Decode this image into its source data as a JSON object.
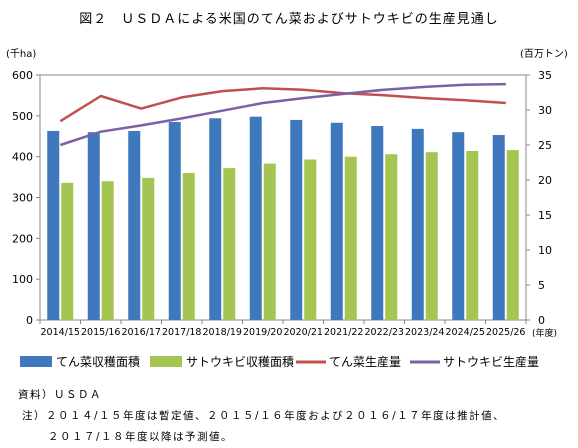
{
  "figure": {
    "title": "図２　ＵＳＤＡによる米国のてん菜およびサトウキビの生産見通し"
  },
  "notes": {
    "source": "資料）ＵＳＤＡ",
    "note1": "注）２０１４/１５年度は暫定値、２０１５/１６年度および２０１６/１７年度は推計値、",
    "note2": "２０１７/１８年度以降は予測値。"
  },
  "chart_data": {
    "type": "bar",
    "categories": [
      "2014/15",
      "2015/16",
      "2016/17",
      "2017/18",
      "2018/19",
      "2019/20",
      "2020/21",
      "2021/22",
      "2022/23",
      "2023/24",
      "2024/25",
      "2025/26"
    ],
    "x_unit": "(年度)",
    "left_axis": {
      "label": "(千ha)",
      "min": 0,
      "max": 600,
      "ticks": [
        0,
        100,
        200,
        300,
        400,
        500,
        600
      ]
    },
    "right_axis": {
      "label": "(百万トン)",
      "min": 0,
      "max": 35,
      "ticks": [
        0,
        5,
        10,
        15,
        20,
        25,
        30,
        35
      ]
    },
    "grid": false,
    "legend_position": "bottom",
    "series": [
      {
        "name": "てん菜収穫面積",
        "kind": "bar",
        "axis": "left",
        "color": "#3f78bd",
        "values": [
          463,
          460,
          463,
          485,
          494,
          498,
          490,
          483,
          475,
          468,
          460,
          453
        ]
      },
      {
        "name": "サトウキビ収穫面積",
        "kind": "bar",
        "axis": "left",
        "color": "#a4c552",
        "values": [
          336,
          340,
          348,
          360,
          372,
          383,
          393,
          400,
          406,
          411,
          414,
          416
        ]
      },
      {
        "name": "てん菜生産量",
        "kind": "line",
        "axis": "right",
        "color": "#c0504d",
        "values": [
          28.4,
          32.0,
          30.2,
          31.8,
          32.7,
          33.1,
          32.9,
          32.4,
          32.1,
          31.7,
          31.4,
          31.0
        ]
      },
      {
        "name": "サトウキビ生産量",
        "kind": "line",
        "axis": "right",
        "color": "#7b60a8",
        "values": [
          25.0,
          26.9,
          27.8,
          28.8,
          29.9,
          31.0,
          31.7,
          32.3,
          32.9,
          33.3,
          33.6,
          33.7
        ]
      }
    ]
  }
}
